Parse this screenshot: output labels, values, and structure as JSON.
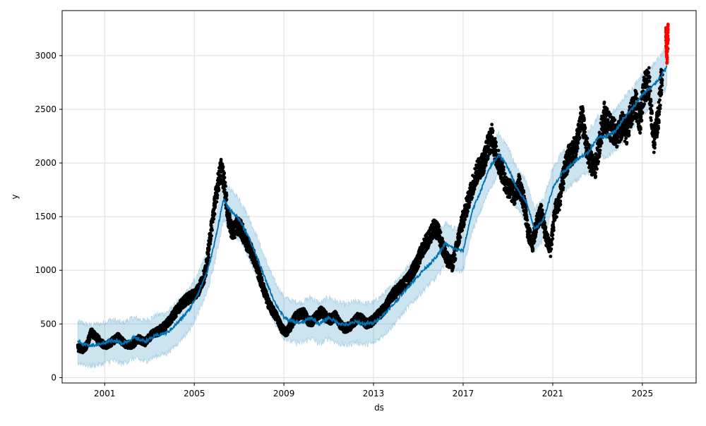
{
  "chart_data": {
    "type": "line",
    "title": "",
    "xlabel": "ds",
    "ylabel": "y",
    "xlim": [
      1999.1,
      2027.4
    ],
    "ylim": [
      -50,
      3420
    ],
    "grid": true,
    "x_ticks": [
      2001,
      2005,
      2009,
      2013,
      2017,
      2021,
      2025
    ],
    "x_tick_labels": [
      "2001",
      "2005",
      "2009",
      "2013",
      "2017",
      "2021",
      "2025"
    ],
    "y_ticks": [
      0,
      500,
      1000,
      1500,
      2000,
      2500,
      3000
    ],
    "y_tick_labels": [
      "0",
      "500",
      "1000",
      "1500",
      "2000",
      "2500",
      "3000"
    ],
    "colors": {
      "forecast_line": "#0072B2",
      "uncertainty_band": "#0072B2",
      "observed_points": "#000000",
      "highlighted_points": "#ff0000",
      "grid": "#dddddd"
    },
    "series": [
      {
        "kind": "forecast",
        "x": [
          1999.8,
          2000.3,
          2000.8,
          2001.3,
          2001.8,
          2002.3,
          2002.8,
          2003.3,
          2003.8,
          2004.3,
          2004.8,
          2005.2,
          2005.6,
          2005.9,
          2006.3,
          2006.6,
          2007.0,
          2007.4,
          2007.8,
          2008.2,
          2008.6,
          2009.0,
          2009.4,
          2009.8,
          2010.2,
          2010.6,
          2011.0,
          2011.4,
          2011.8,
          2012.2,
          2012.6,
          2013.0,
          2013.4,
          2013.8,
          2014.2,
          2014.6,
          2015.0,
          2015.4,
          2015.8,
          2016.2,
          2016.6,
          2017.0,
          2017.4,
          2017.8,
          2018.2,
          2018.6,
          2019.0,
          2019.4,
          2019.8,
          2020.2,
          2020.6,
          2021.0,
          2021.4,
          2021.8,
          2022.2,
          2022.6,
          2023.0,
          2023.4,
          2023.8,
          2024.2,
          2024.6,
          2025.0,
          2025.4,
          2025.8,
          2026.1
        ],
        "y": [
          330,
          300,
          310,
          350,
          320,
          370,
          340,
          390,
          420,
          520,
          640,
          800,
          1000,
          1250,
          1660,
          1560,
          1480,
          1320,
          1120,
          900,
          700,
          560,
          520,
          510,
          560,
          500,
          560,
          510,
          490,
          520,
          500,
          510,
          580,
          660,
          760,
          860,
          950,
          1040,
          1120,
          1250,
          1200,
          1180,
          1550,
          1750,
          1960,
          2080,
          1960,
          1760,
          1650,
          1380,
          1480,
          1760,
          1900,
          1980,
          2050,
          2100,
          2240,
          2250,
          2300,
          2420,
          2520,
          2640,
          2700,
          2800,
          2900
        ]
      },
      {
        "kind": "band-upper",
        "x": [
          1999.8,
          2000.3,
          2000.8,
          2001.3,
          2001.8,
          2002.3,
          2002.8,
          2003.3,
          2003.8,
          2004.3,
          2004.8,
          2005.2,
          2005.6,
          2005.9,
          2006.3,
          2006.6,
          2007.0,
          2007.4,
          2007.8,
          2008.2,
          2008.6,
          2009.0,
          2009.4,
          2009.8,
          2010.2,
          2010.6,
          2011.0,
          2011.4,
          2011.8,
          2012.2,
          2012.6,
          2013.0,
          2013.4,
          2013.8,
          2014.2,
          2014.6,
          2015.0,
          2015.4,
          2015.8,
          2016.2,
          2016.6,
          2017.0,
          2017.4,
          2017.8,
          2018.2,
          2018.6,
          2019.0,
          2019.4,
          2019.8,
          2020.2,
          2020.6,
          2021.0,
          2021.4,
          2021.8,
          2022.2,
          2022.6,
          2023.0,
          2023.4,
          2023.8,
          2024.2,
          2024.6,
          2025.0,
          2025.4,
          2025.8,
          2026.1
        ],
        "y": [
          520,
          490,
          500,
          540,
          510,
          560,
          530,
          580,
          610,
          710,
          830,
          990,
          1190,
          1440,
          1850,
          1750,
          1670,
          1510,
          1310,
          1090,
          890,
          750,
          710,
          700,
          750,
          690,
          750,
          700,
          680,
          710,
          690,
          700,
          770,
          850,
          950,
          1050,
          1140,
          1230,
          1310,
          1440,
          1390,
          1370,
          1740,
          1940,
          2150,
          2270,
          2150,
          1950,
          1840,
          1570,
          1670,
          1950,
          2090,
          2170,
          2240,
          2290,
          2430,
          2440,
          2490,
          2610,
          2710,
          2830,
          2890,
          2990,
          3090
        ]
      },
      {
        "kind": "band-lower",
        "x": [
          1999.8,
          2000.3,
          2000.8,
          2001.3,
          2001.8,
          2002.3,
          2002.8,
          2003.3,
          2003.8,
          2004.3,
          2004.8,
          2005.2,
          2005.6,
          2005.9,
          2006.3,
          2006.6,
          2007.0,
          2007.4,
          2007.8,
          2008.2,
          2008.6,
          2009.0,
          2009.4,
          2009.8,
          2010.2,
          2010.6,
          2011.0,
          2011.4,
          2011.8,
          2012.2,
          2012.6,
          2013.0,
          2013.4,
          2013.8,
          2014.2,
          2014.6,
          2015.0,
          2015.4,
          2015.8,
          2016.2,
          2016.6,
          2017.0,
          2017.4,
          2017.8,
          2018.2,
          2018.6,
          2019.0,
          2019.4,
          2019.8,
          2020.2,
          2020.6,
          2021.0,
          2021.4,
          2021.8,
          2022.2,
          2022.6,
          2023.0,
          2023.4,
          2023.8,
          2024.2,
          2024.6,
          2025.0,
          2025.4,
          2025.8,
          2026.1
        ],
        "y": [
          140,
          110,
          120,
          160,
          130,
          180,
          150,
          200,
          230,
          330,
          450,
          610,
          810,
          1060,
          1470,
          1370,
          1290,
          1130,
          930,
          710,
          510,
          370,
          330,
          320,
          370,
          310,
          370,
          320,
          300,
          330,
          310,
          320,
          390,
          470,
          570,
          670,
          760,
          850,
          930,
          1060,
          1010,
          990,
          1360,
          1560,
          1770,
          1890,
          1770,
          1570,
          1460,
          1190,
          1290,
          1570,
          1710,
          1790,
          1860,
          1910,
          2050,
          2060,
          2110,
          2230,
          2330,
          2450,
          2510,
          2610,
          2710
        ]
      },
      {
        "kind": "observed",
        "x": [
          1999.8,
          2000.0,
          2000.2,
          2000.4,
          2000.6,
          2000.8,
          2001.0,
          2001.3,
          2001.6,
          2001.9,
          2002.2,
          2002.5,
          2002.8,
          2003.1,
          2003.4,
          2003.7,
          2004.0,
          2004.3,
          2004.6,
          2004.9,
          2005.2,
          2005.5,
          2005.7,
          2005.9,
          2006.05,
          2006.2,
          2006.35,
          2006.5,
          2006.7,
          2006.9,
          2007.1,
          2007.3,
          2007.5,
          2007.7,
          2007.9,
          2008.1,
          2008.3,
          2008.5,
          2008.7,
          2008.9,
          2009.1,
          2009.3,
          2009.5,
          2009.7,
          2009.9,
          2010.1,
          2010.3,
          2010.5,
          2010.7,
          2010.9,
          2011.1,
          2011.3,
          2011.5,
          2011.7,
          2011.9,
          2012.1,
          2012.3,
          2012.5,
          2012.7,
          2012.9,
          2013.1,
          2013.3,
          2013.5,
          2013.7,
          2013.9,
          2014.1,
          2014.3,
          2014.5,
          2014.7,
          2014.9,
          2015.1,
          2015.3,
          2015.5,
          2015.7,
          2015.9,
          2016.1,
          2016.3,
          2016.5,
          2016.7,
          2016.9,
          2017.1,
          2017.3,
          2017.5,
          2017.7,
          2017.9,
          2018.1,
          2018.3,
          2018.5,
          2018.7,
          2018.9,
          2019.1,
          2019.3,
          2019.5,
          2019.7,
          2019.9,
          2020.1,
          2020.3,
          2020.5,
          2020.7,
          2020.9,
          2021.1,
          2021.3,
          2021.5,
          2021.7,
          2021.9,
          2022.1,
          2022.3,
          2022.5,
          2022.7,
          2022.9,
          2023.1,
          2023.3,
          2023.5,
          2023.7,
          2023.9,
          2024.1,
          2024.3,
          2024.5,
          2024.7,
          2024.9,
          2025.1,
          2025.3,
          2025.5,
          2025.7,
          2025.9
        ],
        "y": [
          280,
          260,
          300,
          420,
          380,
          340,
          290,
          330,
          380,
          310,
          300,
          360,
          330,
          400,
          430,
          480,
          560,
          650,
          720,
          760,
          820,
          980,
          1300,
          1600,
          1800,
          1950,
          1800,
          1500,
          1350,
          1420,
          1380,
          1280,
          1200,
          1100,
          950,
          820,
          700,
          620,
          560,
          460,
          420,
          480,
          560,
          590,
          600,
          520,
          530,
          580,
          620,
          560,
          540,
          580,
          500,
          460,
          470,
          510,
          560,
          540,
          500,
          520,
          560,
          600,
          650,
          720,
          780,
          820,
          860,
          900,
          980,
          1050,
          1150,
          1250,
          1300,
          1400,
          1350,
          1200,
          1100,
          1050,
          1200,
          1400,
          1550,
          1700,
          1850,
          1950,
          2000,
          2150,
          2250,
          2050,
          1950,
          1800,
          1750,
          1700,
          1800,
          1650,
          1350,
          1250,
          1450,
          1550,
          1300,
          1200,
          1550,
          1650,
          1900,
          2050,
          2100,
          2200,
          2450,
          2150,
          2000,
          1950,
          2200,
          2450,
          2350,
          2300,
          2250,
          2350,
          2300,
          2450,
          2550,
          2400,
          2700,
          2750,
          2200,
          2400,
          2900
        ],
        "highlighted_x": [
          2026.05,
          2026.1,
          2026.15
        ],
        "highlighted_y": [
          3150,
          3050,
          3200
        ]
      }
    ]
  }
}
